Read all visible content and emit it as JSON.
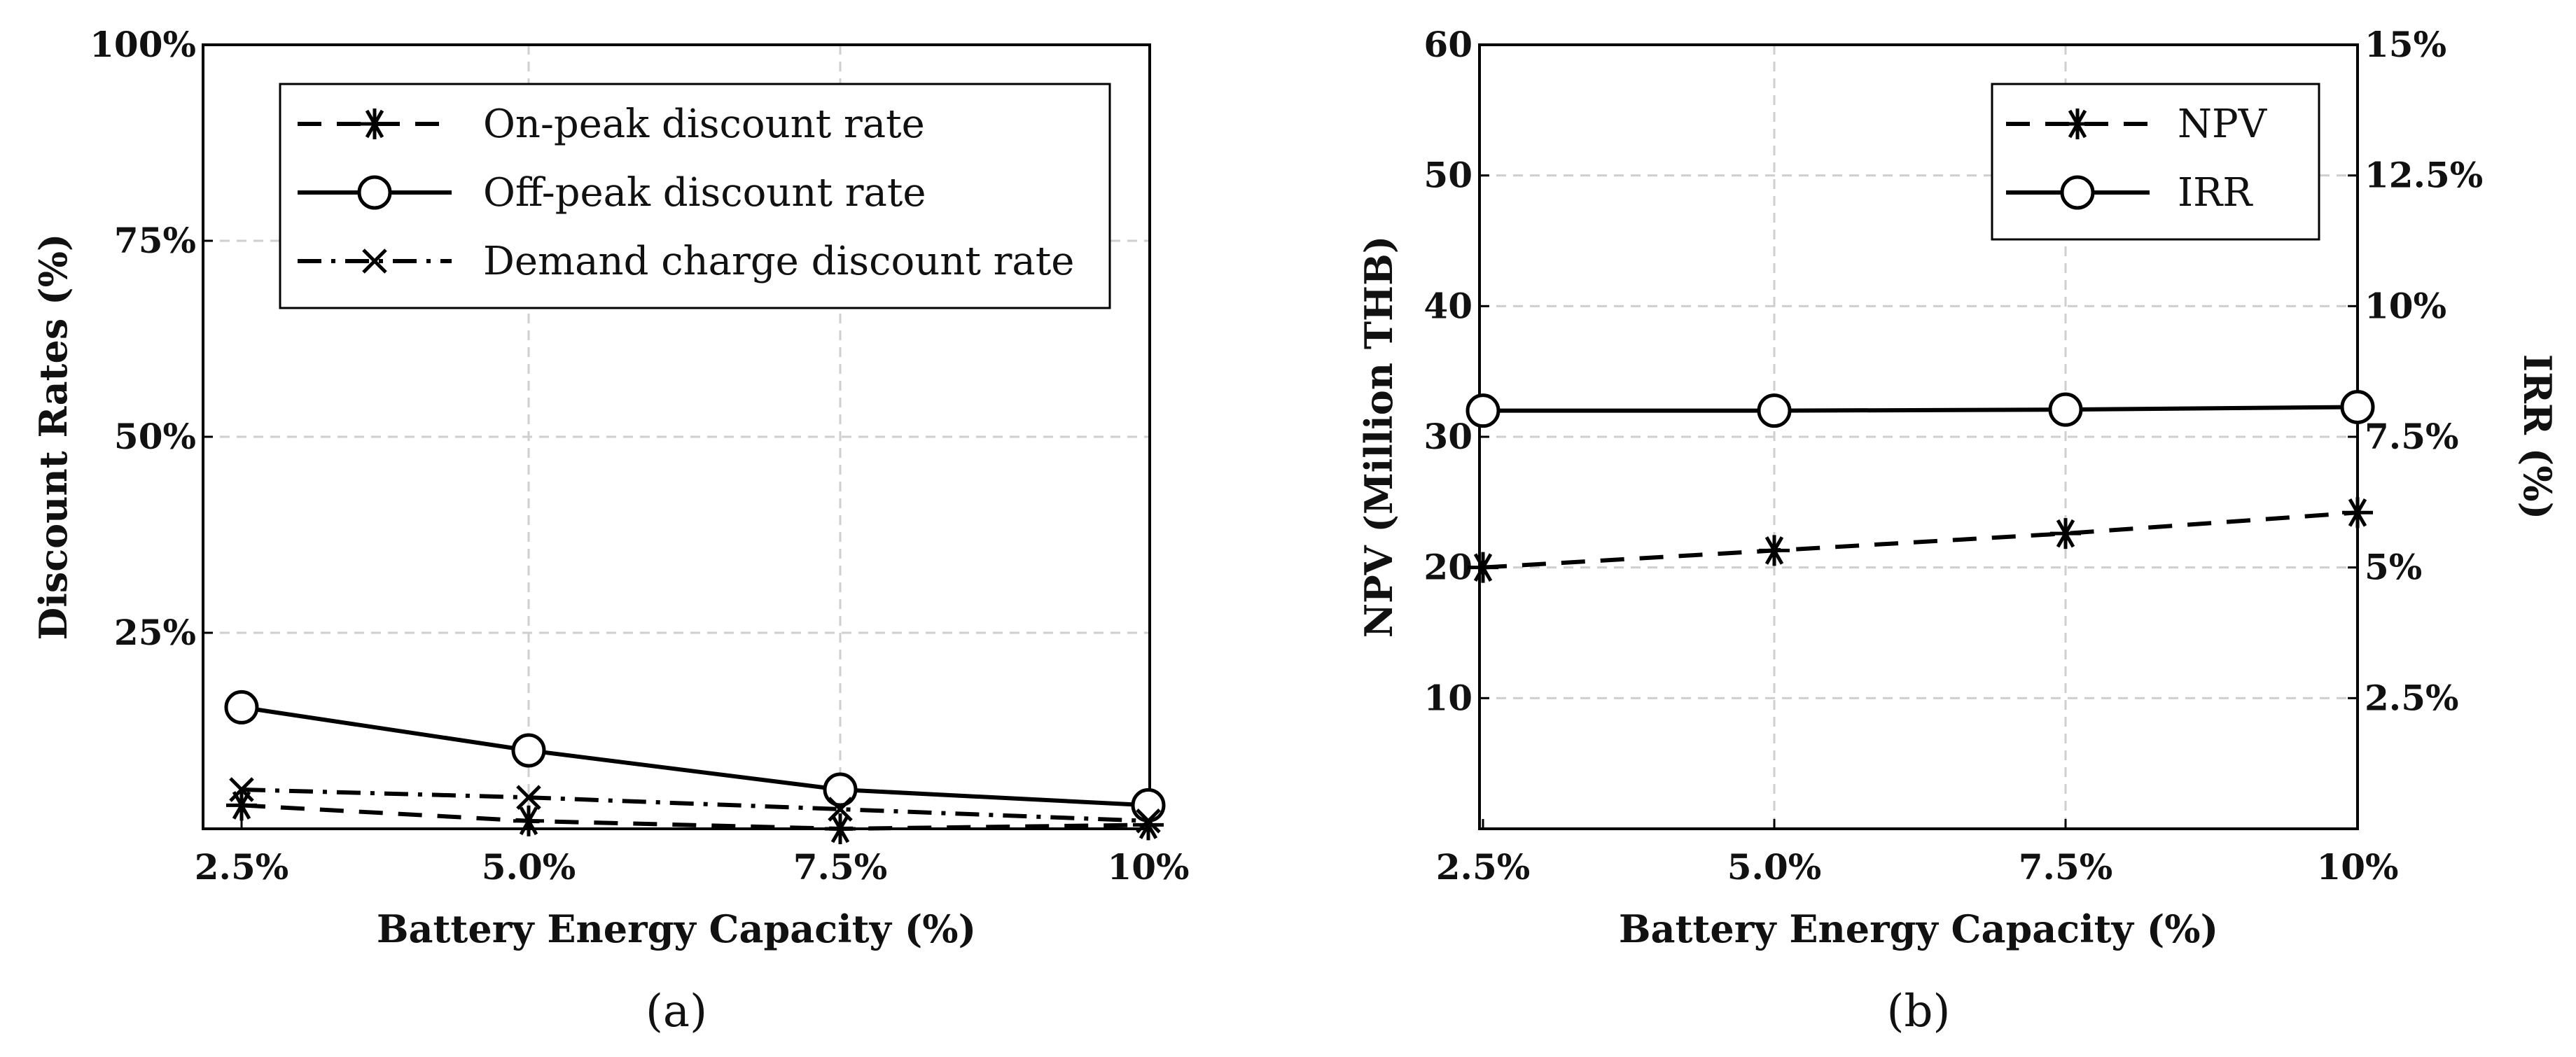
{
  "chart_data": [
    {
      "panel_label": "(a)",
      "type": "line",
      "xlabel": "Battery Energy Capacity (%)",
      "ylabel": "Discount Rates (%)",
      "categories": [
        "2.5%",
        "5.0%",
        "7.5%",
        "10%"
      ],
      "ylim": [
        0,
        100
      ],
      "yticks": [
        {
          "value": 25,
          "label": "25%"
        },
        {
          "value": 50,
          "label": "50%"
        },
        {
          "value": 75,
          "label": "75%"
        },
        {
          "value": 100,
          "label": "100%"
        }
      ],
      "grid": true,
      "legend_position": "top-right",
      "series": [
        {
          "name": "On-peak discount rate",
          "marker": "asterisk",
          "dash": "dashed",
          "values": [
            3,
            1,
            0,
            0.5
          ]
        },
        {
          "name": "Off-peak discount rate",
          "marker": "circle",
          "dash": "solid",
          "values": [
            15.5,
            10,
            5,
            3
          ]
        },
        {
          "name": "Demand charge discount rate",
          "marker": "x",
          "dash": "dashdot",
          "values": [
            5,
            4,
            2.5,
            1
          ]
        }
      ]
    },
    {
      "panel_label": "(b)",
      "type": "line",
      "xlabel": "Battery Energy Capacity (%)",
      "ylabel": "NPV (Million THB)",
      "y2label": "IRR (%)",
      "categories": [
        "2.5%",
        "5.0%",
        "7.5%",
        "10%"
      ],
      "ylim": [
        0,
        60
      ],
      "yticks": [
        {
          "value": 10,
          "label": "10"
        },
        {
          "value": 20,
          "label": "20"
        },
        {
          "value": 30,
          "label": "30"
        },
        {
          "value": 40,
          "label": "40"
        },
        {
          "value": 50,
          "label": "50"
        },
        {
          "value": 60,
          "label": "60"
        }
      ],
      "y2lim": [
        0,
        15
      ],
      "y2ticks": [
        {
          "value": 2.5,
          "label": "2.5%"
        },
        {
          "value": 5,
          "label": "5%"
        },
        {
          "value": 7.5,
          "label": "7.5%"
        },
        {
          "value": 10,
          "label": "10%"
        },
        {
          "value": 12.5,
          "label": "12.5%"
        },
        {
          "value": 15,
          "label": "15%"
        }
      ],
      "grid": true,
      "legend_position": "top-right",
      "series": [
        {
          "name": "NPV",
          "axis": "left",
          "marker": "asterisk",
          "dash": "dashed",
          "values": [
            20,
            21.3,
            22.6,
            24.2
          ]
        },
        {
          "name": "IRR",
          "axis": "right",
          "marker": "circle",
          "dash": "solid",
          "values": [
            8,
            8,
            8.02,
            8.07
          ]
        }
      ]
    }
  ]
}
